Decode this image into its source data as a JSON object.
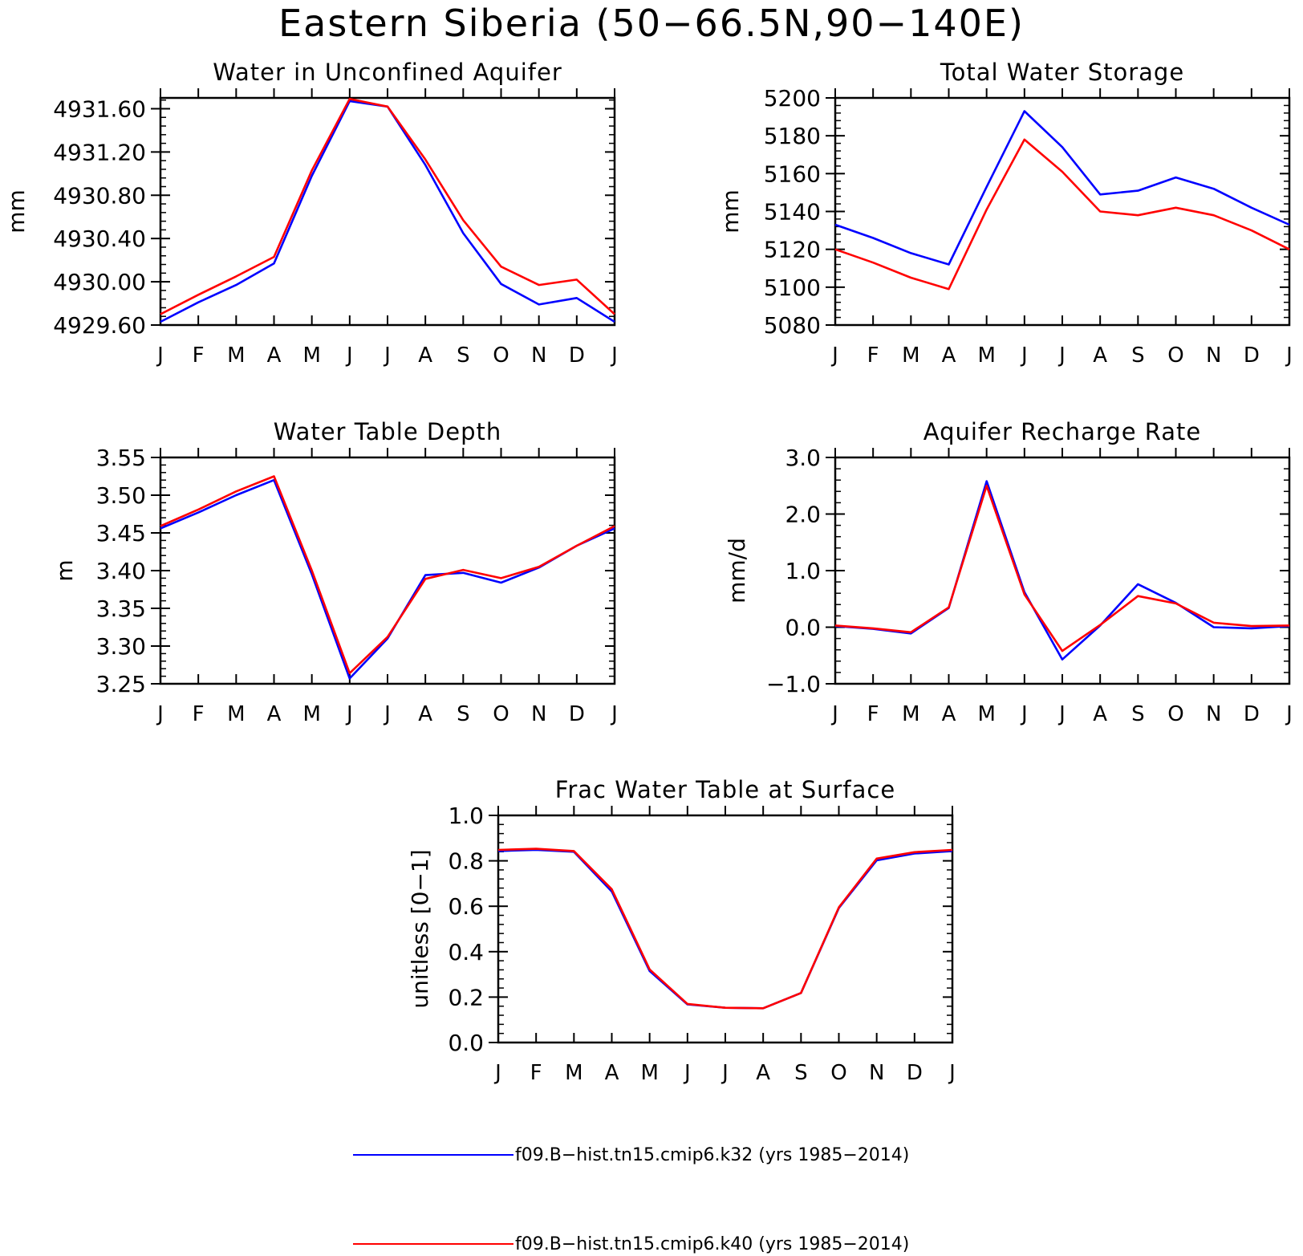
{
  "figure_title": "Eastern Siberia (50−66.5N,90−140E)",
  "colors": {
    "series_1": "#0000ff",
    "series_2": "#ff0000",
    "axis": "#000000"
  },
  "legend": [
    {
      "label": "f09.B−hist.tn15.cmip6.k32 (yrs 1985−2014)",
      "color": "#0000ff"
    },
    {
      "label": "f09.B−hist.tn15.cmip6.k40 (yrs 1985−2014)",
      "color": "#ff0000"
    }
  ],
  "chart_data": [
    {
      "type": "line",
      "title": "Water in Unconfined Aquifer",
      "ylabel": "mm",
      "xlabel": "",
      "categories": [
        "J",
        "F",
        "M",
        "A",
        "M",
        "J",
        "J",
        "A",
        "S",
        "O",
        "N",
        "D",
        "J"
      ],
      "ylim": [
        4929.6,
        4931.7
      ],
      "yticks": [
        4929.6,
        4930.0,
        4930.4,
        4930.8,
        4931.2,
        4931.6
      ],
      "ytick_labels": [
        "4929.60",
        "4930.00",
        "4930.40",
        "4930.80",
        "4931.20",
        "4931.60"
      ],
      "series": [
        {
          "color": "#0000ff",
          "values": [
            4929.63,
            4929.81,
            4929.97,
            4930.17,
            4930.98,
            4931.67,
            4931.62,
            4931.08,
            4930.45,
            4929.98,
            4929.79,
            4929.85,
            4929.63
          ]
        },
        {
          "color": "#ff0000",
          "values": [
            4929.7,
            4929.88,
            4930.05,
            4930.23,
            4931.03,
            4931.69,
            4931.62,
            4931.13,
            4930.57,
            4930.14,
            4929.97,
            4930.02,
            4929.7
          ]
        }
      ]
    },
    {
      "type": "line",
      "title": "Total Water Storage",
      "ylabel": "mm",
      "xlabel": "",
      "categories": [
        "J",
        "F",
        "M",
        "A",
        "M",
        "J",
        "J",
        "A",
        "S",
        "O",
        "N",
        "D",
        "J"
      ],
      "ylim": [
        5080,
        5200
      ],
      "yticks": [
        5080,
        5100,
        5120,
        5140,
        5160,
        5180,
        5200
      ],
      "ytick_labels": [
        "5080",
        "5100",
        "5120",
        "5140",
        "5160",
        "5180",
        "5200"
      ],
      "series": [
        {
          "color": "#0000ff",
          "values": [
            5133,
            5126,
            5118,
            5112,
            5153,
            5193,
            5174,
            5149,
            5151,
            5158,
            5152,
            5142,
            5133
          ]
        },
        {
          "color": "#ff0000",
          "values": [
            5120,
            5113,
            5105,
            5099,
            5141,
            5178,
            5161,
            5140,
            5138,
            5142,
            5138,
            5130,
            5120
          ]
        }
      ]
    },
    {
      "type": "line",
      "title": "Water Table Depth",
      "ylabel": "m",
      "xlabel": "",
      "categories": [
        "J",
        "F",
        "M",
        "A",
        "M",
        "J",
        "J",
        "A",
        "S",
        "O",
        "N",
        "D",
        "J"
      ],
      "ylim": [
        3.25,
        3.55
      ],
      "yticks": [
        3.25,
        3.3,
        3.35,
        3.4,
        3.45,
        3.5,
        3.55
      ],
      "ytick_labels": [
        "3.25",
        "3.30",
        "3.35",
        "3.40",
        "3.45",
        "3.50",
        "3.55"
      ],
      "series": [
        {
          "color": "#0000ff",
          "values": [
            3.456,
            3.477,
            3.5,
            3.52,
            3.395,
            3.257,
            3.31,
            3.394,
            3.397,
            3.384,
            3.404,
            3.433,
            3.456
          ]
        },
        {
          "color": "#ff0000",
          "values": [
            3.459,
            3.481,
            3.505,
            3.525,
            3.4,
            3.264,
            3.312,
            3.389,
            3.401,
            3.39,
            3.405,
            3.433,
            3.459
          ]
        }
      ]
    },
    {
      "type": "line",
      "title": "Aquifer Recharge Rate",
      "ylabel": "mm/d",
      "xlabel": "",
      "categories": [
        "J",
        "F",
        "M",
        "A",
        "M",
        "J",
        "J",
        "A",
        "S",
        "O",
        "N",
        "D",
        "J"
      ],
      "ylim": [
        -1.0,
        3.0
      ],
      "yticks": [
        -1.0,
        0.0,
        1.0,
        2.0,
        3.0
      ],
      "ytick_labels": [
        "−1.0",
        "0.0",
        "1.0",
        "2.0",
        "3.0"
      ],
      "series": [
        {
          "color": "#0000ff",
          "values": [
            0.02,
            -0.03,
            -0.11,
            0.34,
            2.58,
            0.62,
            -0.57,
            0.03,
            0.76,
            0.43,
            0.0,
            -0.02,
            0.02
          ]
        },
        {
          "color": "#ff0000",
          "values": [
            0.03,
            -0.02,
            -0.09,
            0.35,
            2.5,
            0.58,
            -0.42,
            0.04,
            0.55,
            0.42,
            0.08,
            0.02,
            0.03
          ]
        }
      ]
    },
    {
      "type": "line",
      "title": "Frac Water Table at Surface",
      "ylabel": "unitless [0−1]",
      "xlabel": "",
      "categories": [
        "J",
        "F",
        "M",
        "A",
        "M",
        "J",
        "J",
        "A",
        "S",
        "O",
        "N",
        "D",
        "J"
      ],
      "ylim": [
        0.0,
        1.0
      ],
      "yticks": [
        0.0,
        0.2,
        0.4,
        0.6,
        0.8,
        1.0
      ],
      "ytick_labels": [
        "0.0",
        "0.2",
        "0.4",
        "0.6",
        "0.8",
        "1.0"
      ],
      "series": [
        {
          "color": "#0000ff",
          "values": [
            0.843,
            0.848,
            0.84,
            0.665,
            0.315,
            0.168,
            0.153,
            0.151,
            0.218,
            0.592,
            0.802,
            0.832,
            0.843
          ]
        },
        {
          "color": "#ff0000",
          "values": [
            0.848,
            0.853,
            0.843,
            0.675,
            0.322,
            0.17,
            0.153,
            0.151,
            0.218,
            0.595,
            0.81,
            0.838,
            0.848
          ]
        }
      ]
    }
  ]
}
